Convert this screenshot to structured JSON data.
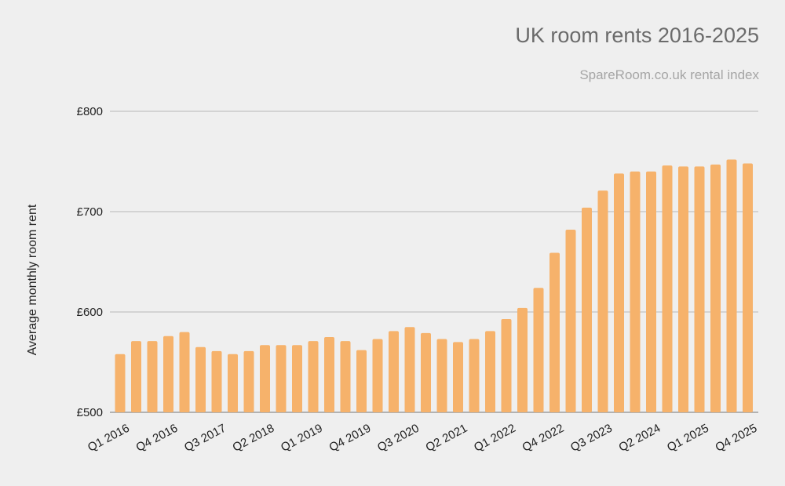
{
  "chart_data": {
    "type": "bar",
    "title": "UK room rents 2016-2025",
    "subtitle": "SpareRoom.co.uk rental index",
    "xlabel": "",
    "ylabel": "Average monthly room rent",
    "ylim": [
      500,
      800
    ],
    "yticks": [
      500,
      600,
      700,
      800
    ],
    "ytick_labels": [
      "£500",
      "£600",
      "£700",
      "£800"
    ],
    "grid": true,
    "legend": "none",
    "bar_color": "#f6b26b",
    "categories": [
      "Q1 2016",
      "Q2 2016",
      "Q3 2016",
      "Q4 2016",
      "Q1 2017",
      "Q2 2017",
      "Q3 2017",
      "Q4 2017",
      "Q1 2018",
      "Q2 2018",
      "Q3 2018",
      "Q4 2018",
      "Q1 2019",
      "Q2 2019",
      "Q3 2019",
      "Q4 2019",
      "Q1 2020",
      "Q2 2020",
      "Q3 2020",
      "Q4 2020",
      "Q1 2021",
      "Q2 2021",
      "Q3 2021",
      "Q4 2021",
      "Q1 2022",
      "Q2 2022",
      "Q3 2022",
      "Q4 2022",
      "Q1 2023",
      "Q2 2023",
      "Q3 2023",
      "Q4 2023",
      "Q1 2024",
      "Q2 2024",
      "Q3 2024",
      "Q4 2024",
      "Q1 2025",
      "Q2 2025",
      "Q3 2025",
      "Q4 2025"
    ],
    "xtick_labels_shown": [
      "Q1 2016",
      "Q4 2016",
      "Q3 2017",
      "Q2 2018",
      "Q1 2019",
      "Q4 2019",
      "Q3 2020",
      "Q2 2021",
      "Q1 2022",
      "Q4 2022",
      "Q3 2023",
      "Q2 2024",
      "Q1 2025",
      "Q4 2025"
    ],
    "values": [
      558,
      571,
      571,
      576,
      580,
      565,
      561,
      558,
      561,
      567,
      567,
      567,
      571,
      575,
      571,
      562,
      573,
      581,
      585,
      579,
      573,
      570,
      573,
      581,
      593,
      604,
      624,
      659,
      682,
      704,
      721,
      738,
      740,
      740,
      746,
      745,
      745,
      747,
      752,
      748
    ]
  }
}
